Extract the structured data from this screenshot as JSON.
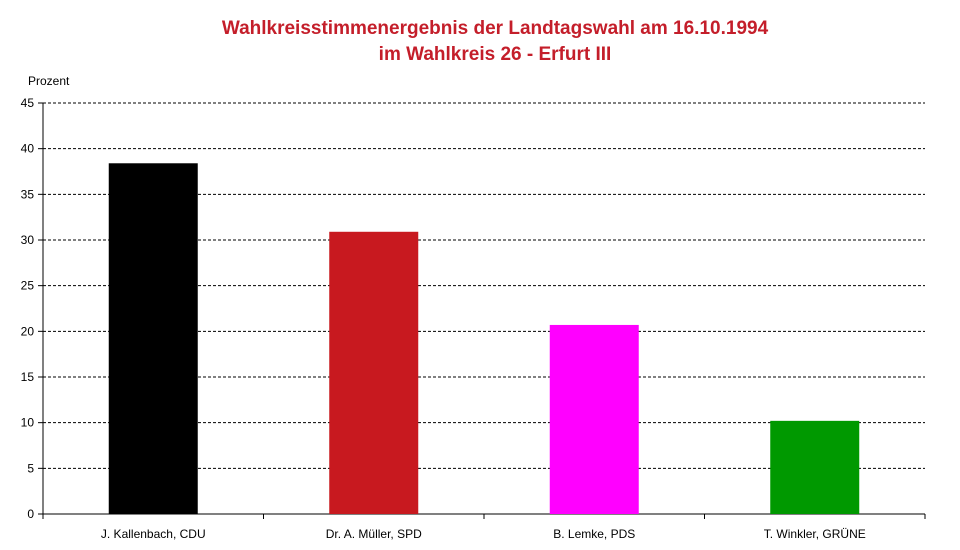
{
  "chart_data": {
    "type": "bar",
    "title": "Wahlkreisstimmenergebnis der Landtagswahl am 16.10.1994",
    "subtitle": "im Wahlkreis 26 - Erfurt III",
    "ylabel": "Prozent",
    "xlabel": "",
    "ylim": [
      0,
      45
    ],
    "yticks": [
      0,
      5,
      10,
      15,
      20,
      25,
      30,
      35,
      40,
      45
    ],
    "grid": true,
    "categories": [
      "J. Kallenbach, CDU",
      "Dr. A. Müller, SPD",
      "B. Lemke, PDS",
      "T. Winkler, GRÜNE"
    ],
    "values": [
      38.4,
      30.9,
      20.7,
      10.2
    ],
    "colors": [
      "#000000",
      "#c8191f",
      "#ff00ff",
      "#009900"
    ]
  }
}
